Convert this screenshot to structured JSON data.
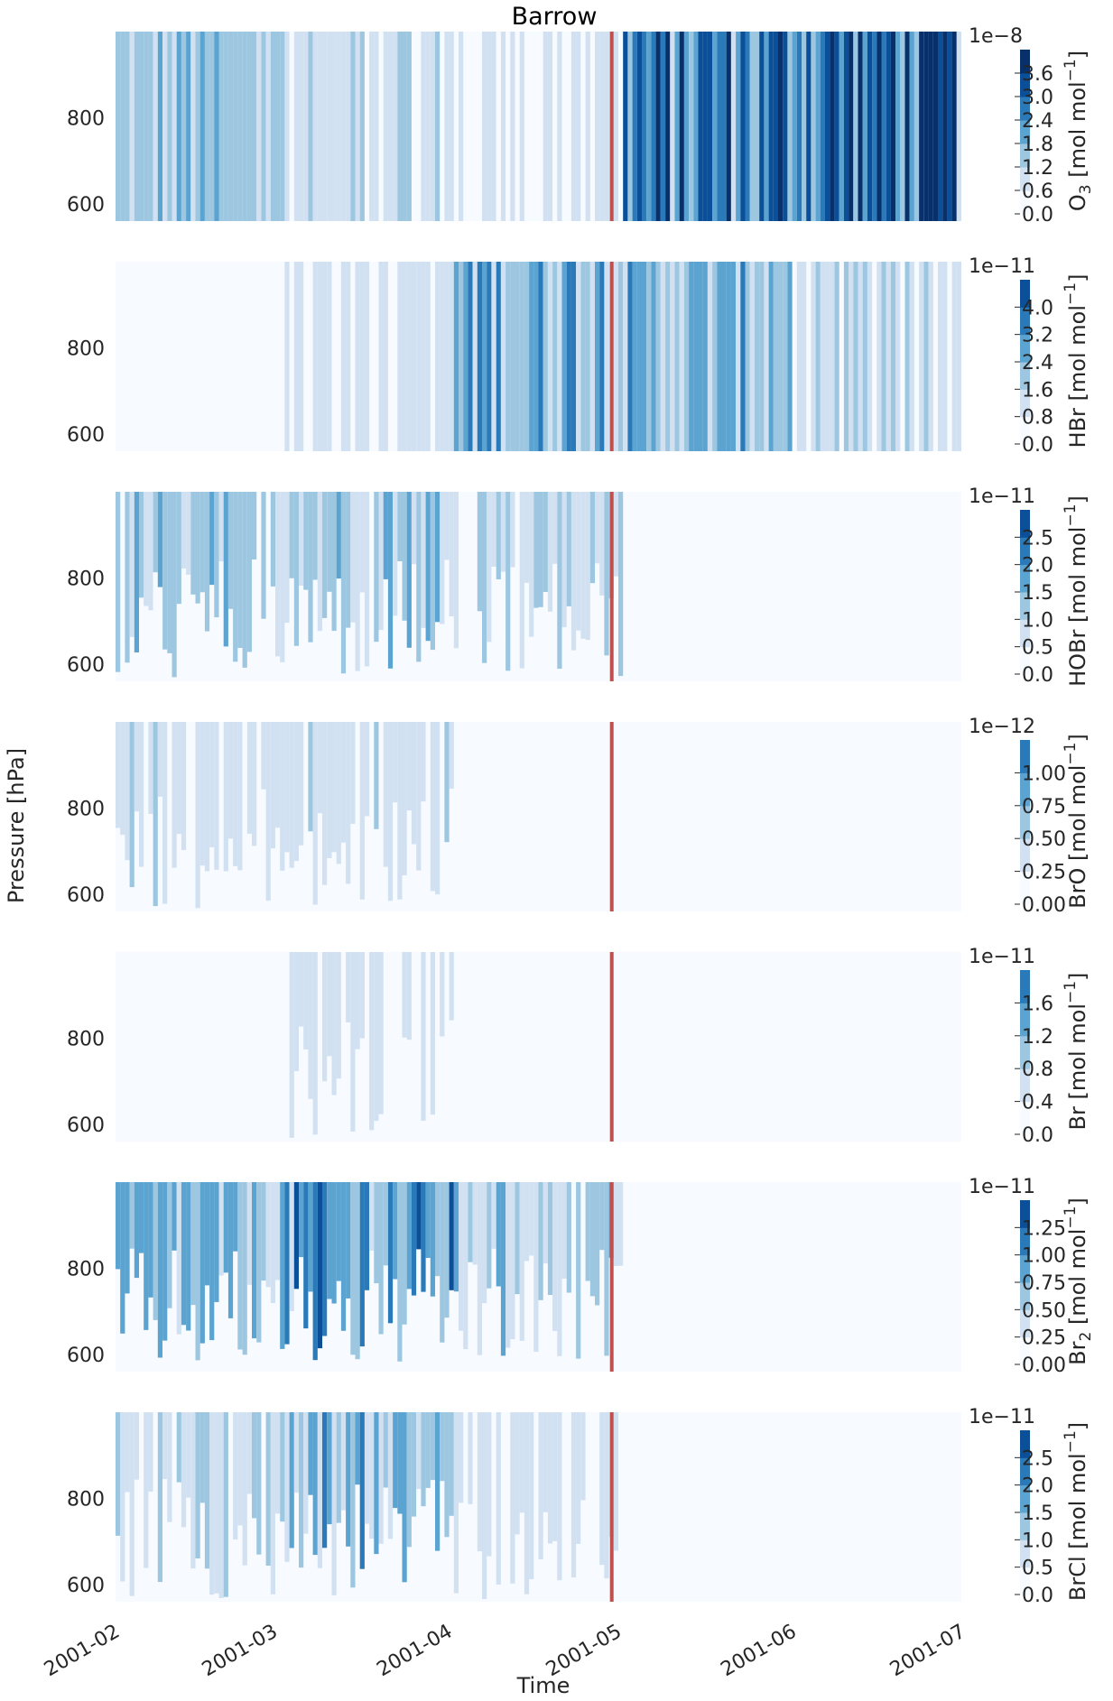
{
  "chart_data": {
    "type": "heatmap",
    "title": "Barrow",
    "xlabel": "Time",
    "ylabel": "Pressure [hPa]",
    "x_ticks": [
      "2001-02",
      "2001-03",
      "2001-04",
      "2001-05",
      "2001-06",
      "2001-07"
    ],
    "xlim": [
      "2001-02-01",
      "2001-07-01"
    ],
    "y_ticks": [
      600,
      800
    ],
    "ylim": [
      1000,
      560
    ],
    "y_inverted": true,
    "marker_line": {
      "date": "2001-04-30",
      "color": "#c0504d"
    },
    "colormap": "Blues",
    "panels": [
      {
        "species": "O3",
        "label": "O",
        "sub": "3",
        "unit_text": " [mol mol",
        "unit_sup": "−1",
        "unit_close": "]",
        "exponent": "1e−8",
        "colorbar_ticks": [
          "0.0",
          "0.6",
          "1.2",
          "1.8",
          "2.4",
          "3.0",
          "3.6"
        ],
        "levels": [
          0.0,
          0.6,
          1.2,
          1.8,
          2.4,
          3.0,
          3.6,
          4.2
        ],
        "mean_by_month": [
          {
            "month": "2001-02",
            "value": 0.8
          },
          {
            "month": "2001-03",
            "value": 0.4
          },
          {
            "month": "2001-04",
            "value": 0.3
          },
          {
            "month": "2001-05",
            "value": 2.0
          },
          {
            "month": "2001-06",
            "value": 2.3
          },
          {
            "month": "2001-07",
            "value": 2.6
          }
        ]
      },
      {
        "species": "HBr",
        "label": "HBr",
        "sub": "",
        "unit_text": " [mol mol",
        "unit_sup": "−1",
        "unit_close": "]",
        "exponent": "1e−11",
        "colorbar_ticks": [
          "0.0",
          "0.8",
          "1.6",
          "2.4",
          "3.2",
          "4.0"
        ],
        "levels": [
          0.0,
          0.8,
          1.6,
          2.4,
          3.2,
          4.0,
          4.8
        ],
        "mean_by_month": [
          {
            "month": "2001-02",
            "value": 0.1
          },
          {
            "month": "2001-03",
            "value": 0.4
          },
          {
            "month": "2001-04",
            "value": 1.8
          },
          {
            "month": "2001-05",
            "value": 1.4
          },
          {
            "month": "2001-06",
            "value": 0.5
          }
        ]
      },
      {
        "species": "HOBr",
        "label": "HOBr",
        "sub": "",
        "unit_text": " [mol mol",
        "unit_sup": "−1",
        "unit_close": "]",
        "exponent": "1e−11",
        "colorbar_ticks": [
          "0.0",
          "0.5",
          "1.0",
          "1.5",
          "2.0",
          "2.5"
        ],
        "levels": [
          0.0,
          0.5,
          1.0,
          1.5,
          2.0,
          2.5,
          3.0
        ],
        "mean_by_month": [
          {
            "month": "2001-02",
            "value": 0.6
          },
          {
            "month": "2001-03",
            "value": 0.8
          },
          {
            "month": "2001-04",
            "value": 0.5
          },
          {
            "month": "2001-05",
            "value": 0.0
          },
          {
            "month": "2001-06",
            "value": 0.1
          }
        ]
      },
      {
        "species": "BrO",
        "label": "BrO",
        "sub": "",
        "unit_text": " [mol mol",
        "unit_sup": "−1",
        "unit_close": "]",
        "exponent": "1e−12",
        "colorbar_ticks": [
          "0.00",
          "0.25",
          "0.50",
          "0.75",
          "1.00"
        ],
        "levels": [
          0.0,
          0.25,
          0.5,
          0.75,
          1.0,
          1.25
        ],
        "mean_by_month": [
          {
            "month": "2001-02",
            "value": 0.15
          },
          {
            "month": "2001-03",
            "value": 0.15
          },
          {
            "month": "2001-04",
            "value": 0.02
          },
          {
            "month": "2001-05",
            "value": 0.0
          },
          {
            "month": "2001-06",
            "value": 0.0
          }
        ]
      },
      {
        "species": "Br",
        "label": "Br",
        "sub": "",
        "unit_text": " [mol mol",
        "unit_sup": "−1",
        "unit_close": "]",
        "exponent": "1e−11",
        "colorbar_ticks": [
          "0.0",
          "0.4",
          "0.8",
          "1.2",
          "1.6"
        ],
        "levels": [
          0.0,
          0.4,
          0.8,
          1.2,
          1.6,
          2.0
        ],
        "mean_by_month": [
          {
            "month": "2001-02",
            "value": 0.02
          },
          {
            "month": "2001-03",
            "value": 0.2
          },
          {
            "month": "2001-04",
            "value": 0.0
          },
          {
            "month": "2001-05",
            "value": 0.0
          },
          {
            "month": "2001-06",
            "value": 0.0
          }
        ]
      },
      {
        "species": "Br2",
        "label": "Br",
        "sub": "2",
        "unit_text": " [mol mol",
        "unit_sup": "−1",
        "unit_close": "]",
        "exponent": "1e−11",
        "colorbar_ticks": [
          "0.00",
          "0.25",
          "0.50",
          "0.75",
          "1.00",
          "1.25"
        ],
        "levels": [
          0.0,
          0.25,
          0.5,
          0.75,
          1.0,
          1.25,
          1.5
        ],
        "mean_by_month": [
          {
            "month": "2001-02",
            "value": 0.4
          },
          {
            "month": "2001-03",
            "value": 0.6
          },
          {
            "month": "2001-04",
            "value": 0.3
          },
          {
            "month": "2001-05",
            "value": 0.0
          },
          {
            "month": "2001-06",
            "value": 0.0
          }
        ]
      },
      {
        "species": "BrCl",
        "label": "BrCl",
        "sub": "",
        "unit_text": " [mol mol",
        "unit_sup": "−1",
        "unit_close": "]",
        "exponent": "1e−11",
        "colorbar_ticks": [
          "0.0",
          "0.5",
          "1.0",
          "1.5",
          "2.0",
          "2.5"
        ],
        "levels": [
          0.0,
          0.5,
          1.0,
          1.5,
          2.0,
          2.5,
          3.0
        ],
        "mean_by_month": [
          {
            "month": "2001-02",
            "value": 0.4
          },
          {
            "month": "2001-03",
            "value": 0.9
          },
          {
            "month": "2001-04",
            "value": 0.2
          },
          {
            "month": "2001-05",
            "value": 0.0
          },
          {
            "month": "2001-06",
            "value": 0.0
          }
        ]
      }
    ]
  }
}
